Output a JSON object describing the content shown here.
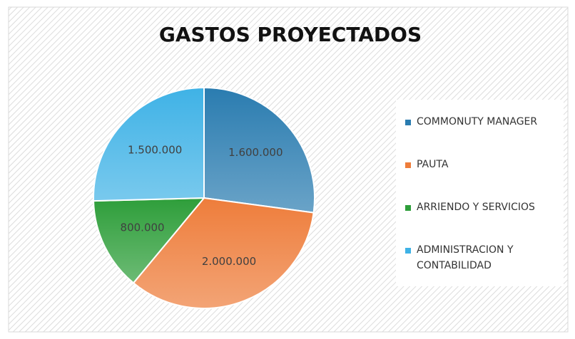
{
  "chart_data": {
    "type": "pie",
    "title": "GASTOS PROYECTADOS",
    "categories": [
      "COMMONUTY MANAGER",
      "PAUTA",
      "ARRIENDO Y SERVICIOS",
      "ADMINISTRACION Y CONTABILIDAD"
    ],
    "values": [
      1600000,
      2000000,
      800000,
      1500000
    ],
    "value_labels": [
      "1.600.000",
      "2.000.000",
      "800.000",
      "1.500.000"
    ],
    "colors": [
      "#2a7cb0",
      "#ee7d3b",
      "#2e9e3a",
      "#3fb2e6"
    ],
    "legend": "right"
  }
}
